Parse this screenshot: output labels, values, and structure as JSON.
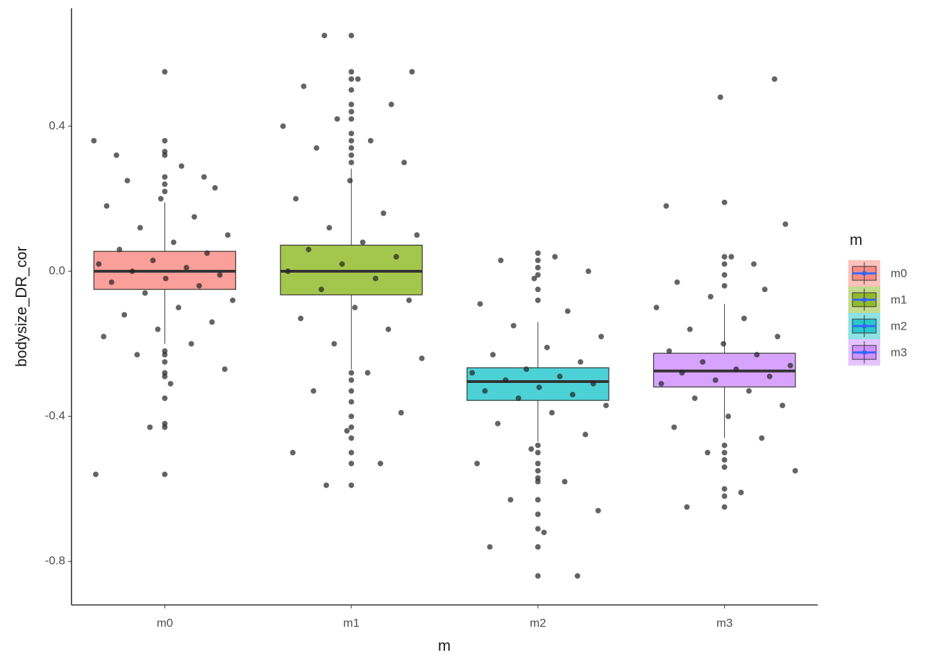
{
  "chart_data": {
    "type": "box",
    "x_label": "m",
    "y_label": "bodysize_DR_cor",
    "legend_title": "m",
    "legend_position": "right",
    "categories": [
      "m0",
      "m1",
      "m2",
      "m3"
    ],
    "colors": [
      "#F8766D",
      "#7CAE00",
      "#00BFC4",
      "#C77CFF"
    ],
    "ylim": [
      -0.92,
      0.725
    ],
    "yticks": [
      {
        "value": -0.8,
        "label": "-0.8"
      },
      {
        "value": -0.4,
        "label": "-0.4"
      },
      {
        "value": 0,
        "label": "0.0"
      },
      0.4
    ],
    "boxes": [
      {
        "whisker_low": -0.2,
        "q1": -0.05,
        "median": 0.0,
        "q3": 0.055,
        "whisker_high": 0.19,
        "outliers": [
          0.55,
          0.36,
          0.33,
          0.32,
          0.26,
          0.24,
          0.22,
          -0.22,
          -0.23,
          -0.25,
          -0.28,
          -0.29,
          -0.35,
          -0.42,
          -0.43,
          -0.56
        ],
        "points": [
          0.36,
          0.29,
          0.25,
          0.23,
          0.2,
          0.18,
          0.15,
          0.12,
          0.1,
          0.08,
          0.06,
          0.05,
          0.03,
          0.02,
          0.01,
          0,
          -0.01,
          -0.02,
          -0.03,
          -0.04,
          -0.06,
          -0.08,
          -0.1,
          -0.12,
          -0.14,
          -0.16,
          -0.18,
          -0.2,
          -0.23,
          -0.27,
          -0.31,
          0.32,
          0.26,
          -0.43,
          -0.56
        ]
      },
      {
        "whisker_low": -0.27,
        "q1": -0.065,
        "median": 0.0,
        "q3": 0.072,
        "whisker_high": 0.283,
        "outliers": [
          0.65,
          0.55,
          0.53,
          0.5,
          0.46,
          0.44,
          0.42,
          0.38,
          0.36,
          0.34,
          0.32,
          0.3,
          -0.28,
          -0.3,
          -0.33,
          -0.36,
          -0.4,
          -0.43,
          -0.46,
          -0.5,
          -0.53,
          -0.59
        ],
        "points": [
          0.65,
          0.55,
          0.53,
          0.51,
          0.46,
          0.42,
          0.4,
          0.36,
          0.34,
          0.3,
          0.25,
          0.2,
          0.16,
          0.12,
          0.1,
          0.08,
          0.06,
          0.04,
          0.02,
          0,
          -0.02,
          -0.05,
          -0.08,
          -0.1,
          -0.13,
          -0.16,
          -0.2,
          -0.24,
          -0.28,
          -0.33,
          -0.39,
          -0.44,
          -0.5,
          -0.53,
          -0.59
        ]
      },
      {
        "whisker_low": -0.47,
        "q1": -0.356,
        "median": -0.304,
        "q3": -0.266,
        "whisker_high": -0.14,
        "outliers": [
          0.05,
          0.03,
          0.01,
          -0.01,
          -0.05,
          -0.08,
          -0.48,
          -0.5,
          -0.53,
          -0.55,
          -0.57,
          -0.58,
          -0.63,
          -0.67,
          -0.71,
          -0.76,
          -0.84
        ],
        "points": [
          0.04,
          0.03,
          0,
          -0.02,
          -0.09,
          -0.11,
          -0.15,
          -0.18,
          -0.21,
          -0.23,
          -0.25,
          -0.27,
          -0.28,
          -0.29,
          -0.3,
          -0.31,
          -0.32,
          -0.33,
          -0.34,
          -0.35,
          -0.37,
          -0.39,
          -0.42,
          -0.45,
          -0.49,
          -0.53,
          -0.58,
          -0.63,
          -0.66,
          -0.72,
          -0.76,
          -0.84
        ]
      },
      {
        "whisker_low": -0.46,
        "q1": -0.319,
        "median": -0.275,
        "q3": -0.226,
        "whisker_high": -0.09,
        "outliers": [
          0.19,
          0.04,
          0.02,
          -0.01,
          -0.04,
          -0.48,
          -0.5,
          -0.52,
          -0.54,
          -0.6,
          -0.62,
          -0.65
        ],
        "points": [
          0.13,
          0.04,
          -0.03,
          -0.05,
          -0.07,
          -0.1,
          -0.13,
          -0.16,
          -0.18,
          -0.2,
          -0.22,
          -0.23,
          -0.25,
          -0.26,
          -0.27,
          -0.28,
          -0.29,
          -0.3,
          -0.31,
          -0.33,
          -0.35,
          -0.37,
          -0.4,
          -0.43,
          -0.46,
          -0.5,
          -0.55,
          -0.61,
          -0.65,
          0.53,
          0.48,
          0.18,
          0.02
        ]
      }
    ]
  }
}
